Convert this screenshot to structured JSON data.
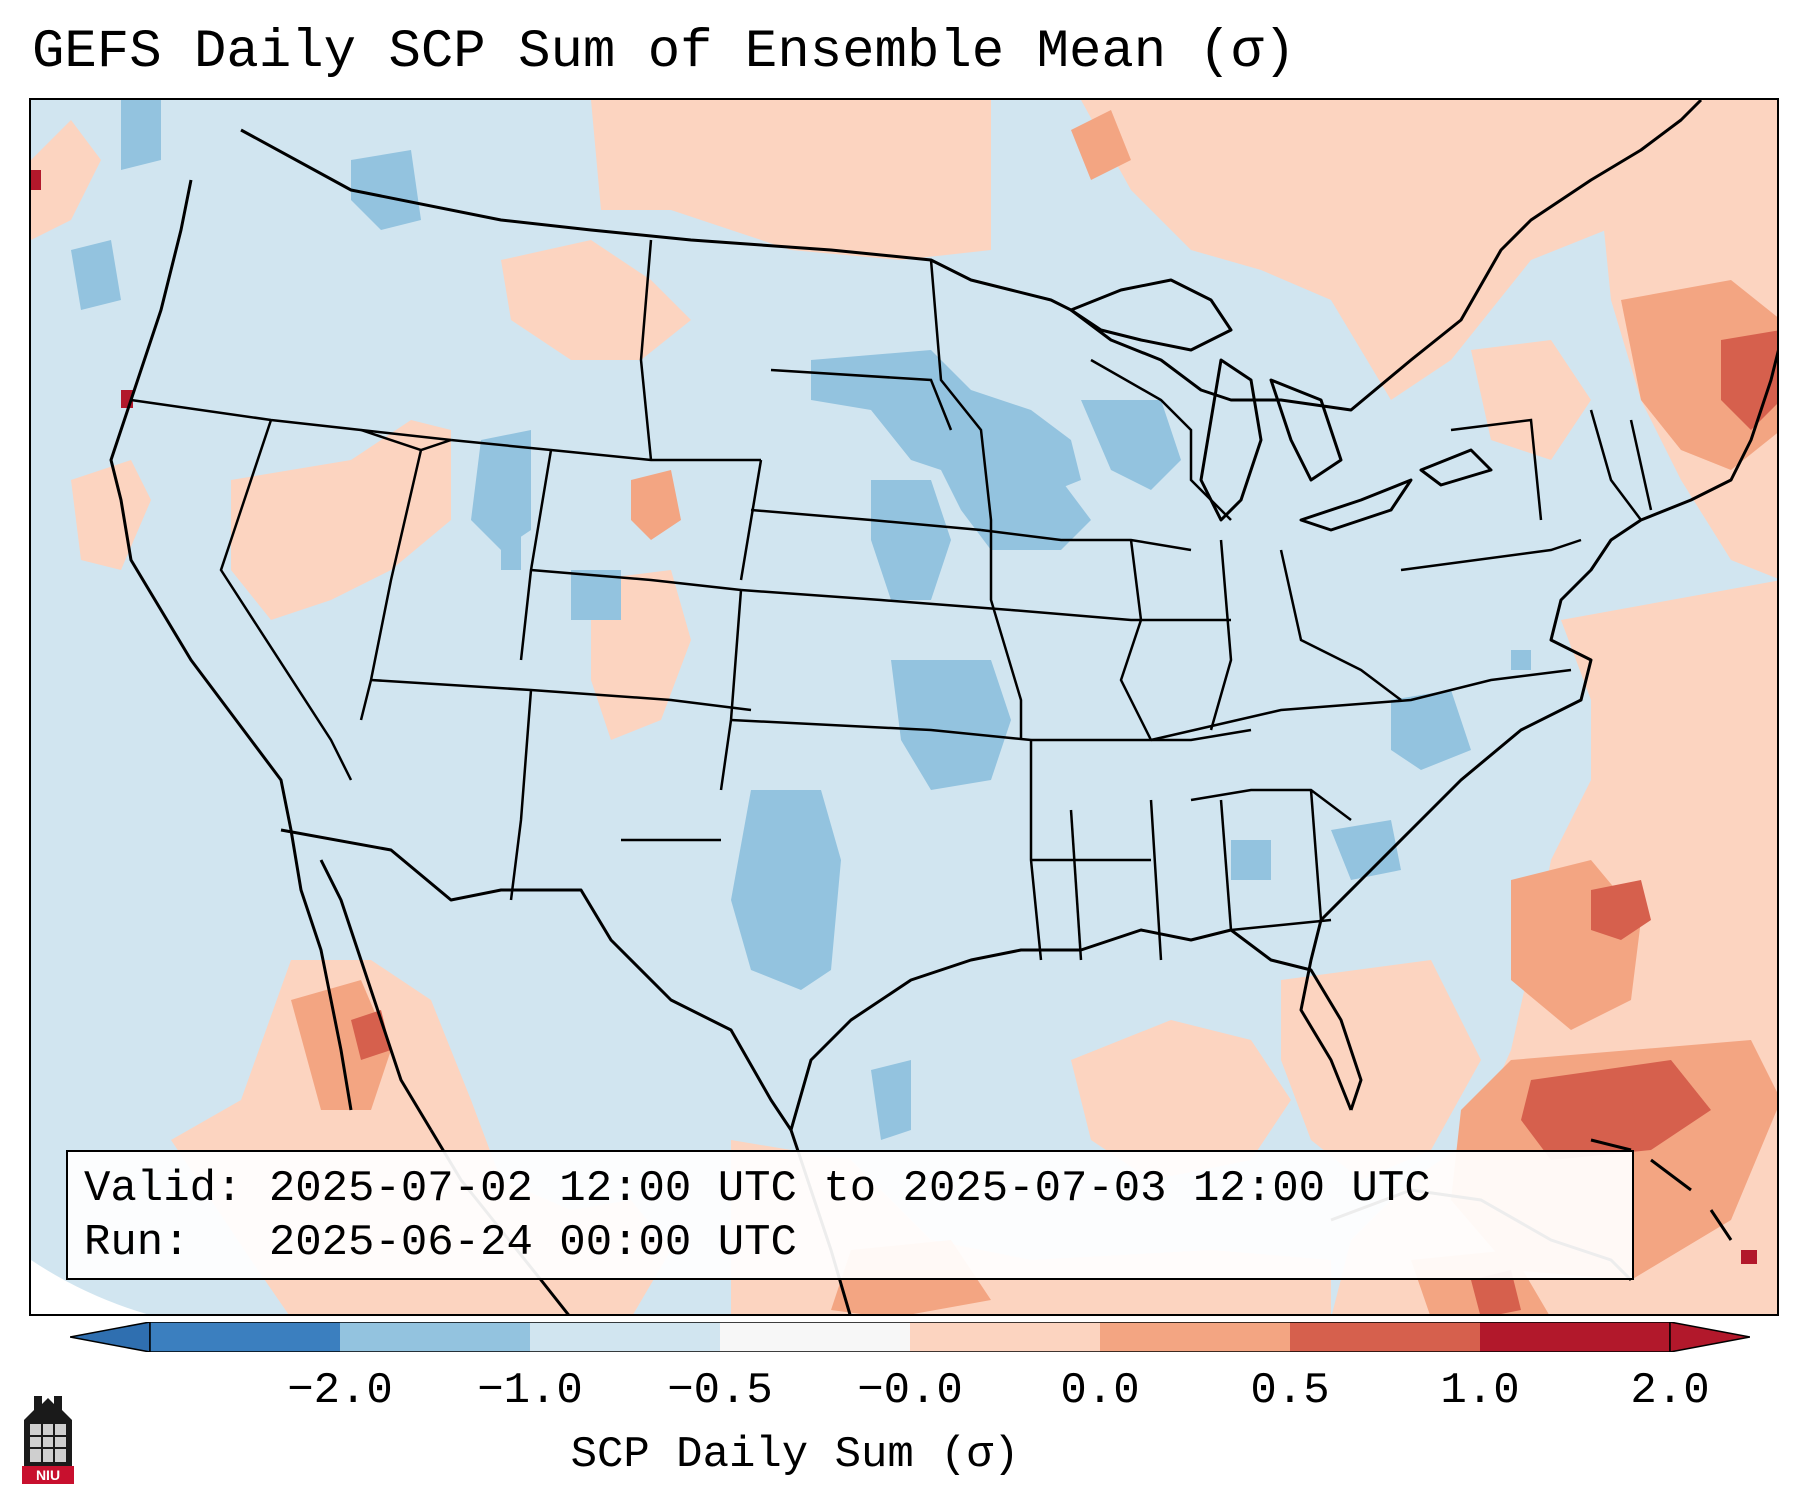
{
  "title": "GEFS Daily SCP Sum of Ensemble Mean (σ)",
  "info": {
    "valid_label": "Valid:",
    "valid_text": "2025-07-02 12:00 UTC to 2025-07-03 12:00 UTC",
    "run_label": "Run:",
    "run_text": "2025-06-24 00:00 UTC"
  },
  "colorbar": {
    "label": "SCP Daily Sum (σ)",
    "ticks": [
      "−2.0",
      "−1.0",
      "−0.5",
      "−0.0",
      "0.0",
      "0.5",
      "1.0",
      "2.0"
    ],
    "colors": [
      "#3b7fbf",
      "#93c3df",
      "#d1e5f0",
      "#f7f7f7",
      "#fcd4c0",
      "#f3a582",
      "#d6604d",
      "#b2182b"
    ],
    "extend_low_color": "#2f6fb0",
    "extend_high_color": "#b2182b"
  },
  "legend_colors": {
    "background_field": "#d1e5f0",
    "weak_positive": "#fcd4c0",
    "moderate_positive": "#f3a582",
    "strong_positive": "#d6604d",
    "moderate_negative": "#93c3df",
    "outlines": "#000000"
  },
  "logo": {
    "text": "NIU"
  }
}
